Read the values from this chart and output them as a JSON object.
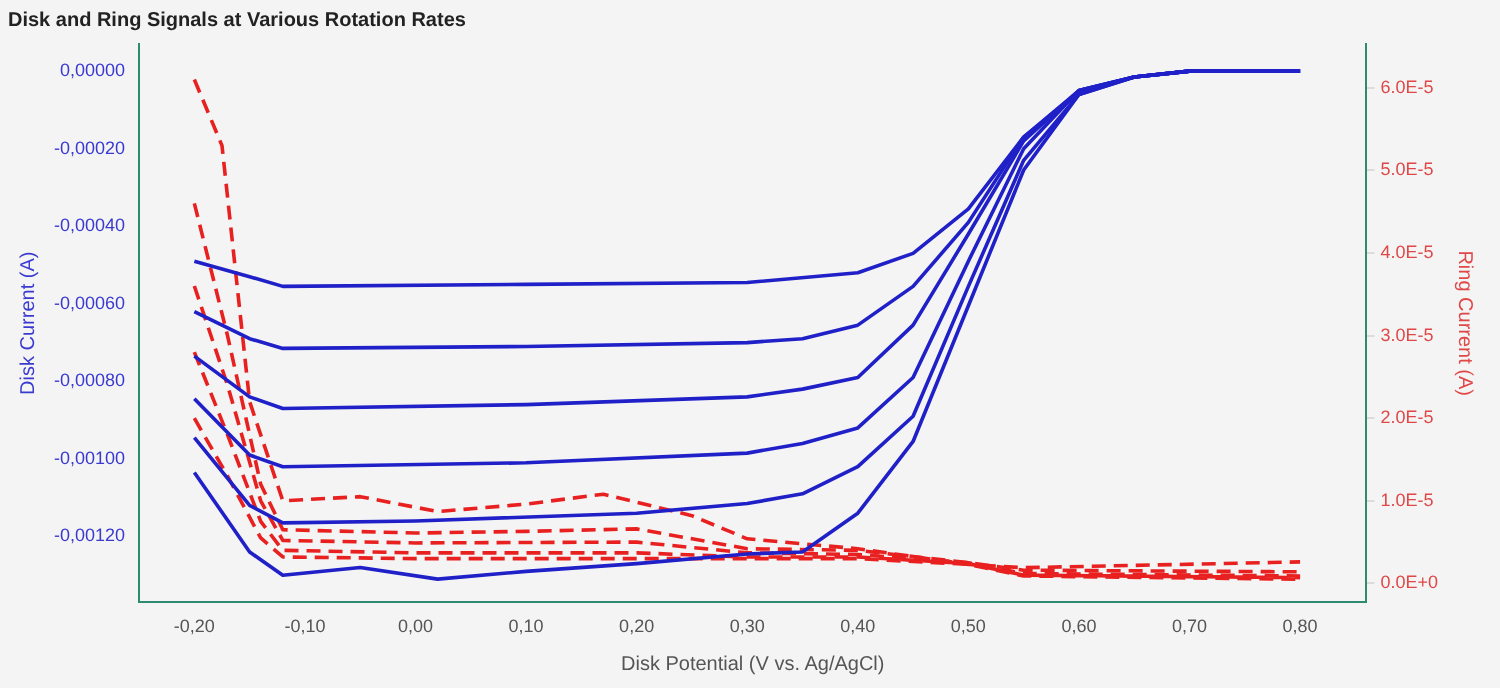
{
  "chart_data": {
    "type": "line",
    "title": "Disk and Ring Signals at Various Rotation Rates",
    "xlabel": "Disk Potential (V vs. Ag/AgCl)",
    "ylabel": "Disk Current (A)",
    "y2label": "Ring Current (A)",
    "xlim": [
      -0.25,
      0.86
    ],
    "ylim": [
      -0.00137,
      7e-05
    ],
    "y2lim": [
      -2.3e-06,
      6.53e-05
    ],
    "xticks": [
      {
        "value": -0.2,
        "label": "-0,20"
      },
      {
        "value": -0.1,
        "label": "-0,10"
      },
      {
        "value": 0,
        "label": "0,00"
      },
      {
        "value": 0.1,
        "label": "0,10"
      },
      {
        "value": 0.2,
        "label": "0,20"
      },
      {
        "value": 0.3,
        "label": "0,30"
      },
      {
        "value": 0.4,
        "label": "0,40"
      },
      {
        "value": 0.5,
        "label": "0,50"
      },
      {
        "value": 0.6,
        "label": "0,60"
      },
      {
        "value": 0.7,
        "label": "0,70"
      },
      {
        "value": 0.8,
        "label": "0,80"
      }
    ],
    "yticks": [
      {
        "value": 0,
        "label": "0,00000"
      },
      {
        "value": -0.0002,
        "label": "-0,00020"
      },
      {
        "value": -0.0004,
        "label": "-0,00040"
      },
      {
        "value": -0.0006,
        "label": "-0,00060"
      },
      {
        "value": -0.0008,
        "label": "-0,00080"
      },
      {
        "value": -0.001,
        "label": "-0,00100"
      },
      {
        "value": -0.0012,
        "label": "-0,00120"
      }
    ],
    "y2ticks": [
      {
        "value": 0,
        "label": "0.0E+0"
      },
      {
        "value": 1e-05,
        "label": "1.0E-5"
      },
      {
        "value": 2e-05,
        "label": "2.0E-5"
      },
      {
        "value": 3e-05,
        "label": "3.0E-5"
      },
      {
        "value": 4e-05,
        "label": "4.0E-5"
      },
      {
        "value": 5e-05,
        "label": "5.0E-5"
      },
      {
        "value": 6e-05,
        "label": "6.0E-5"
      }
    ],
    "grid": false,
    "legend": false,
    "marker": "none",
    "series": [
      {
        "color": "#2020c8",
        "line_style": "solid",
        "x": [
          -0.2,
          -0.15,
          -0.12,
          0.1,
          0.3,
          0.4,
          0.45,
          0.5,
          0.55,
          0.6,
          0.65,
          0.7,
          0.8
        ],
        "values": [
          -0.00049,
          -0.00053,
          -0.000555,
          -0.00055,
          -0.000545,
          -0.00052,
          -0.00047,
          -0.000355,
          -0.00017,
          -5.5e-05,
          -1.5e-05,
          0,
          0
        ]
      },
      {
        "color": "#2020c8",
        "line_style": "solid",
        "x": [
          -0.2,
          -0.15,
          -0.12,
          0.1,
          0.3,
          0.35,
          0.4,
          0.45,
          0.5,
          0.55,
          0.6,
          0.65,
          0.7,
          0.8
        ],
        "values": [
          -0.00062,
          -0.00069,
          -0.000715,
          -0.00071,
          -0.0007,
          -0.00069,
          -0.000655,
          -0.000555,
          -0.00039,
          -0.00017,
          -5e-05,
          -1.5e-05,
          0,
          0
        ]
      },
      {
        "color": "#2020c8",
        "line_style": "solid",
        "x": [
          -0.2,
          -0.15,
          -0.12,
          0.1,
          0.3,
          0.35,
          0.4,
          0.45,
          0.5,
          0.55,
          0.6,
          0.65,
          0.7,
          0.8
        ],
        "values": [
          -0.000735,
          -0.00084,
          -0.00087,
          -0.00086,
          -0.00084,
          -0.00082,
          -0.00079,
          -0.000655,
          -0.00042,
          -0.00018,
          -5e-05,
          -1.5e-05,
          0,
          0
        ]
      },
      {
        "color": "#2020c8",
        "line_style": "solid",
        "x": [
          -0.2,
          -0.15,
          -0.12,
          0.1,
          0.3,
          0.35,
          0.4,
          0.45,
          0.5,
          0.55,
          0.6,
          0.65,
          0.7,
          0.8
        ],
        "values": [
          -0.000845,
          -0.00099,
          -0.00102,
          -0.00101,
          -0.000985,
          -0.00096,
          -0.00092,
          -0.00079,
          -0.00049,
          -0.0002,
          -5e-05,
          -1.5e-05,
          0,
          0
        ]
      },
      {
        "color": "#2020c8",
        "line_style": "solid",
        "x": [
          -0.2,
          -0.15,
          -0.12,
          0,
          0.2,
          0.3,
          0.35,
          0.4,
          0.45,
          0.5,
          0.55,
          0.6,
          0.65,
          0.7,
          0.8
        ],
        "values": [
          -0.000945,
          -0.00112,
          -0.001165,
          -0.00116,
          -0.00114,
          -0.001115,
          -0.00109,
          -0.00102,
          -0.00089,
          -0.000555,
          -0.00023,
          -6e-05,
          -1.5e-05,
          0,
          0
        ]
      },
      {
        "color": "#2020c8",
        "line_style": "solid",
        "x": [
          -0.2,
          -0.15,
          -0.12,
          -0.05,
          0.02,
          0.1,
          0.2,
          0.3,
          0.35,
          0.4,
          0.45,
          0.5,
          0.55,
          0.6,
          0.65,
          0.7,
          0.8
        ],
        "values": [
          -0.001035,
          -0.00124,
          -0.0013,
          -0.00128,
          -0.00131,
          -0.00129,
          -0.00127,
          -0.001245,
          -0.00124,
          -0.00114,
          -0.000955,
          -0.000605,
          -0.000255,
          -6e-05,
          -1.5e-05,
          0,
          0
        ]
      },
      {
        "color": "#e82020",
        "line_style": "dashed",
        "axis": "y2",
        "x": [
          -0.2,
          -0.175,
          -0.15,
          -0.12,
          -0.05,
          0.02,
          0.1,
          0.17,
          0.25,
          0.3,
          0.4,
          0.5,
          0.55,
          0.8
        ],
        "values": [
          6.1e-05,
          5.3e-05,
          2.2e-05,
          1e-05,
          1.05e-05,
          8.7e-06,
          9.6e-06,
          1.08e-05,
          8.2e-06,
          5.4e-06,
          4.2e-06,
          2.3e-06,
          1.9e-06,
          2.6e-06
        ]
      },
      {
        "color": "#e82020",
        "line_style": "dashed",
        "axis": "y2",
        "x": [
          -0.2,
          -0.17,
          -0.14,
          -0.12,
          0,
          0.1,
          0.2,
          0.3,
          0.4,
          0.5,
          0.55,
          0.8
        ],
        "values": [
          4.6e-05,
          3e-05,
          1.2e-05,
          6.5e-06,
          6.1e-06,
          6.3e-06,
          6.6e-06,
          4.2e-06,
          4e-06,
          2.5e-06,
          1.6e-06,
          1.4e-06
        ]
      },
      {
        "color": "#e82020",
        "line_style": "dashed",
        "axis": "y2",
        "x": [
          -0.2,
          -0.17,
          -0.14,
          -0.12,
          0,
          0.2,
          0.3,
          0.4,
          0.5,
          0.55,
          0.8
        ],
        "values": [
          3.6e-05,
          2.4e-05,
          1e-05,
          5.2e-06,
          4.9e-06,
          5e-06,
          3.7e-06,
          3.5e-06,
          2.5e-06,
          1.2e-06,
          9e-07
        ]
      },
      {
        "color": "#e82020",
        "line_style": "dashed",
        "axis": "y2",
        "x": [
          -0.2,
          -0.17,
          -0.14,
          -0.12,
          0,
          0.2,
          0.3,
          0.4,
          0.5,
          0.55,
          0.8
        ],
        "values": [
          2.8e-05,
          1.8e-05,
          7.5e-06,
          4e-06,
          3.7e-06,
          3.7e-06,
          3.2e-06,
          3.2e-06,
          2.4e-06,
          1e-06,
          7e-07
        ]
      },
      {
        "color": "#e82020",
        "line_style": "dashed",
        "axis": "y2",
        "x": [
          -0.2,
          -0.17,
          -0.14,
          -0.12,
          0,
          0.2,
          0.3,
          0.4,
          0.5,
          0.55,
          0.8
        ],
        "values": [
          2e-05,
          1.3e-05,
          5.5e-06,
          3.2e-06,
          3e-06,
          3e-06,
          3e-06,
          3e-06,
          2.3e-06,
          9e-07,
          5e-07
        ]
      }
    ]
  }
}
